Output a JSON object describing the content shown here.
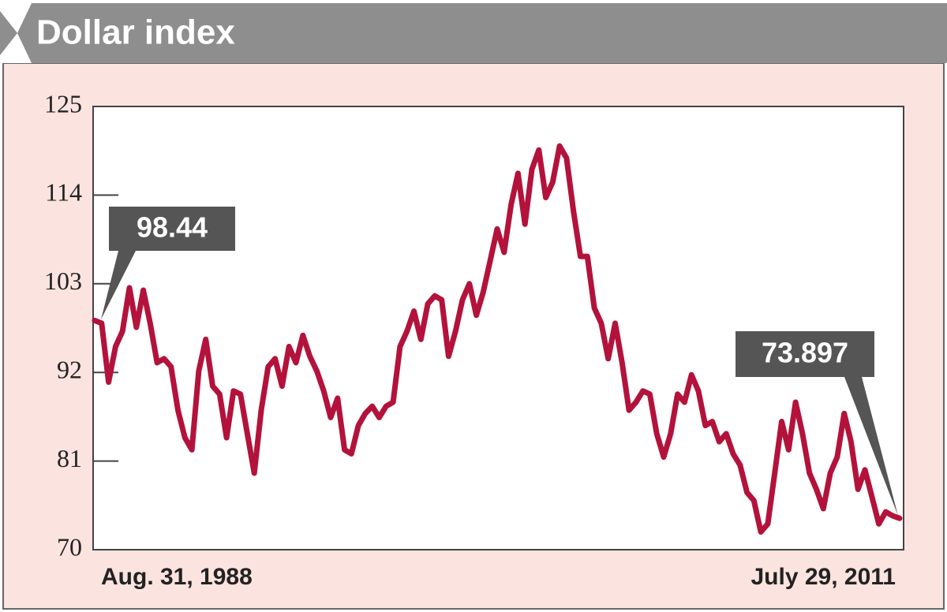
{
  "chart_data": {
    "type": "line",
    "title": "Dollar index",
    "categories": [
      "Aug. 31, 1988",
      null,
      null,
      null,
      null,
      null,
      null,
      null,
      null,
      null,
      null,
      null,
      null,
      null,
      null,
      null,
      null,
      null,
      null,
      null,
      null,
      null,
      null,
      null,
      null,
      null,
      null,
      null,
      null,
      null,
      null,
      null,
      null,
      null,
      null,
      null,
      null,
      null,
      null,
      null,
      null,
      null,
      null,
      null,
      null,
      null,
      null,
      null,
      null,
      null,
      null,
      null,
      null,
      null,
      null,
      null,
      null,
      null,
      null,
      null,
      null,
      null,
      null,
      null,
      null,
      null,
      null,
      null,
      null,
      null,
      null,
      null,
      null,
      null,
      null,
      null,
      null,
      null,
      null,
      null,
      null,
      null,
      null,
      null,
      null,
      null,
      null,
      null,
      null,
      null,
      null,
      null,
      null,
      null,
      null,
      null,
      null,
      null,
      null,
      null,
      null,
      null,
      null,
      null,
      null,
      null,
      null,
      null,
      null,
      null,
      null,
      null,
      null,
      null,
      null,
      null,
      "July 29, 2011"
    ],
    "values": [
      98.44,
      98.1,
      90.8,
      95.2,
      97.1,
      102.5,
      97.6,
      102.2,
      98.1,
      93.2,
      93.7,
      92.7,
      87.3,
      83.9,
      82.4,
      92.2,
      96.1,
      90.3,
      89.3,
      83.9,
      89.7,
      89.3,
      84.4,
      79.5,
      87.3,
      92.7,
      93.7,
      90.3,
      95.2,
      93.2,
      96.6,
      94.0,
      92.2,
      89.7,
      86.4,
      88.8,
      82.4,
      81.9,
      85.4,
      86.9,
      87.8,
      86.4,
      87.8,
      88.3,
      95.2,
      97.1,
      99.6,
      96.1,
      100.5,
      101.5,
      101.0,
      94.0,
      97.1,
      101.0,
      103.0,
      99.1,
      102.0,
      105.9,
      109.8,
      106.9,
      112.8,
      116.7,
      110.4,
      117.2,
      119.6,
      113.7,
      115.6,
      120.1,
      118.6,
      112.0,
      106.4,
      106.4,
      100.0,
      98.1,
      93.7,
      98.1,
      93.2,
      87.3,
      88.3,
      89.7,
      89.3,
      84.4,
      81.5,
      84.4,
      89.3,
      88.3,
      91.7,
      89.7,
      85.4,
      85.9,
      83.4,
      84.4,
      81.9,
      80.5,
      77.1,
      76.1,
      72.2,
      73.2,
      79.5,
      85.9,
      82.4,
      88.3,
      84.4,
      79.5,
      77.5,
      75.1,
      79.5,
      81.5,
      86.9,
      83.4,
      77.5,
      79.9,
      76.6,
      73.2,
      74.7,
      74.2,
      73.897
    ],
    "color": "#b3123b",
    "ylim": [
      70,
      125
    ],
    "yticks": [
      70,
      81,
      92,
      103,
      114,
      125
    ]
  }
}
